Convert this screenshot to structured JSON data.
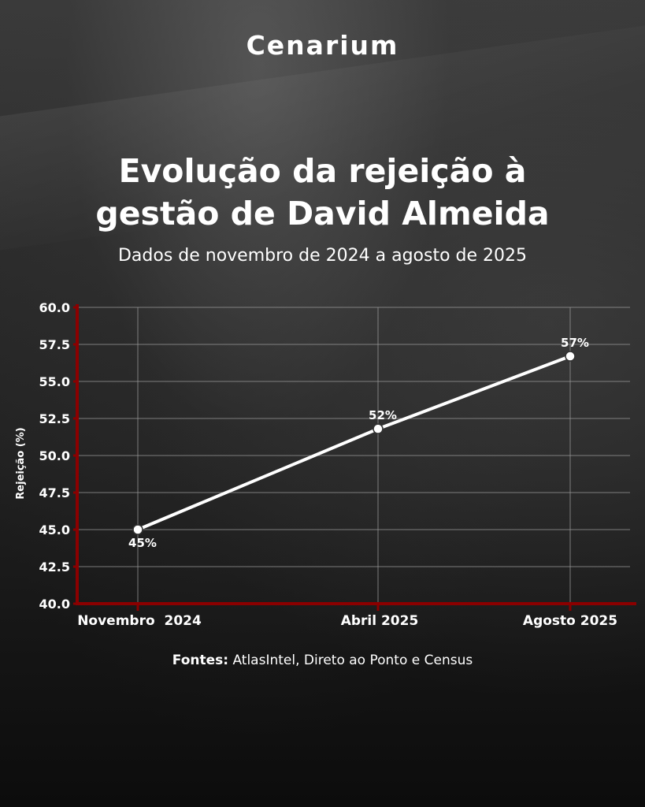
{
  "brand": "Cenarium",
  "title_line1": "Evolução da rejeição à",
  "title_line2": "gestão de David Almeida",
  "subtitle": "Dados de novembro de 2024 a agosto de 2025",
  "source_label": "Fontes:",
  "source_text": " AtlasIntel, Direto ao Ponto e Census",
  "colors": {
    "axis": "#8b0000",
    "line": "#ffffff",
    "grid": "#9a9a9a"
  },
  "chart_data": {
    "type": "line",
    "title": "Evolução da rejeição à gestão de David Almeida",
    "subtitle": "Dados de novembro de 2024 a agosto de 2025",
    "xlabel": "",
    "ylabel": "Rejeição (%)",
    "categories": [
      "Novembro  2024",
      "Abril 2025",
      "Agosto 2025"
    ],
    "x_months": [
      0,
      5,
      9
    ],
    "values": [
      45.0,
      51.8,
      56.7
    ],
    "data_labels": [
      "45%",
      "52%",
      "57%"
    ],
    "ylim": [
      40.0,
      60.0
    ],
    "yticks": [
      "40.0",
      "42.5",
      "45.0",
      "47.5",
      "50.0",
      "52.5",
      "55.0",
      "57.5",
      "60.0"
    ],
    "grid": true
  }
}
